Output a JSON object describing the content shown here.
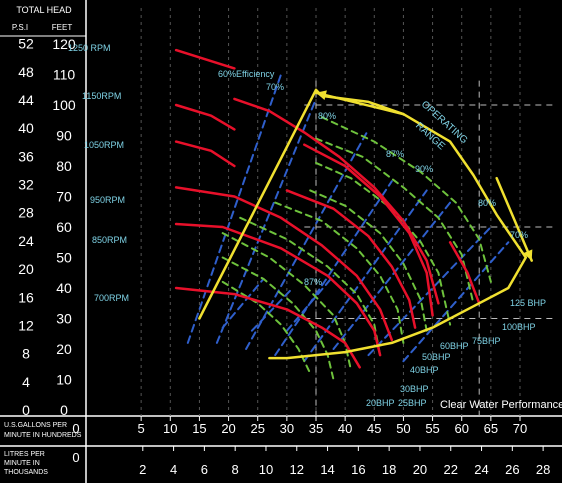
{
  "chart_data": {
    "type": "line",
    "title": "Clear Water Performance",
    "header": {
      "total_head": "TOTAL HEAD",
      "psi": "P.S.I",
      "feet": "FEET"
    },
    "psi_ticks": [
      0,
      4,
      8,
      12,
      16,
      20,
      24,
      28,
      32,
      36,
      40,
      44,
      48,
      52
    ],
    "feet_ticks": [
      0,
      10,
      20,
      30,
      40,
      50,
      60,
      70,
      80,
      90,
      100,
      110,
      120
    ],
    "usgpm_label": "U.S.GALLONS PER MINUTE IN HUNDREDS",
    "usgpm_ticks": [
      0,
      5,
      10,
      15,
      20,
      25,
      30,
      35,
      40,
      45,
      50,
      55,
      60,
      65,
      70
    ],
    "lpm_label": "LITRES PER MINUTE IN THOUSANDS",
    "lpm_ticks": [
      0,
      2,
      4,
      6,
      8,
      10,
      12,
      14,
      16,
      18,
      20,
      22,
      24,
      26,
      28
    ],
    "xlim": [
      0,
      70
    ],
    "ylim_feet": [
      0,
      120
    ],
    "grid_feet": [
      30,
      60,
      100
    ],
    "grid_x": [
      35,
      63
    ],
    "rpm_curves": [
      {
        "name": "1250 RPM",
        "color": "#e8102a",
        "points": [
          [
            11,
            118
          ],
          [
            21,
            112
          ]
        ]
      },
      {
        "name": "1150RPM",
        "color": "#e8102a",
        "points": [
          [
            11,
            100
          ],
          [
            17,
            96.5
          ],
          [
            21,
            92
          ]
        ]
      },
      {
        "name": "1050RPM",
        "color": "#e8102a",
        "points": [
          [
            11,
            88
          ],
          [
            17,
            85
          ],
          [
            21,
            80
          ]
        ]
      },
      {
        "name": "950RPM",
        "color": "#e8102a",
        "points": [
          [
            11,
            73
          ],
          [
            21,
            70
          ],
          [
            29,
            63
          ],
          [
            36,
            54
          ],
          [
            42,
            44
          ],
          [
            46,
            33
          ],
          [
            48,
            23
          ]
        ]
      },
      {
        "name": "850RPM",
        "color": "#e8102a",
        "points": [
          [
            11,
            61
          ],
          [
            19,
            60
          ],
          [
            29,
            53
          ],
          [
            37,
            44
          ],
          [
            42,
            35
          ],
          [
            45,
            26
          ],
          [
            46,
            18
          ]
        ]
      },
      {
        "name": "700RPM",
        "color": "#e8102a",
        "points": [
          [
            11,
            40
          ],
          [
            21,
            38
          ],
          [
            30,
            33
          ],
          [
            36,
            27
          ],
          [
            40,
            22
          ],
          [
            42.5,
            14
          ]
        ]
      }
    ],
    "extra_red_curves": [
      [
        [
          21,
          102
        ],
        [
          27,
          98
        ],
        [
          33,
          91
        ],
        [
          39,
          83
        ],
        [
          45,
          73
        ],
        [
          50,
          62
        ],
        [
          54,
          49
        ],
        [
          56,
          35
        ]
      ],
      [
        [
          33,
          87
        ],
        [
          40,
          80
        ],
        [
          46,
          70
        ],
        [
          51,
          58
        ],
        [
          54,
          45
        ],
        [
          55,
          31
        ]
      ],
      [
        [
          30,
          72
        ],
        [
          38,
          66
        ],
        [
          44,
          57
        ],
        [
          48,
          47
        ],
        [
          51,
          36
        ],
        [
          52,
          27
        ]
      ],
      [
        [
          58,
          55
        ],
        [
          61,
          45
        ],
        [
          63,
          35
        ]
      ]
    ],
    "efficiency_lines": [
      {
        "label": "60%Efficiency",
        "color": "#2f5fcc",
        "points": [
          [
            13,
            22
          ],
          [
            29,
            110
          ]
        ]
      },
      {
        "label": "70%",
        "color": "#2f5fcc",
        "points": [
          [
            18,
            22
          ],
          [
            35,
            102
          ]
        ]
      },
      {
        "label": "80%",
        "color": "#2f5fcc",
        "points": [
          [
            23,
            20
          ],
          [
            44,
            92
          ]
        ]
      },
      {
        "label": "87%",
        "color": "#2f5fcc",
        "points": [
          [
            28,
            18
          ],
          [
            48,
            75
          ]
        ]
      },
      {
        "label": "",
        "color": "#2f5fcc",
        "points": [
          [
            33,
            16
          ],
          [
            54,
            72
          ]
        ]
      },
      {
        "label": "90%",
        "color": "#2f5fcc",
        "points": [
          [
            30,
            26
          ],
          [
            38,
            44
          ]
        ]
      },
      {
        "label": "87%",
        "color": "#2f5fcc",
        "points": [
          [
            38,
            20
          ],
          [
            58,
            68
          ]
        ]
      },
      {
        "label": "80%",
        "color": "#2f5fcc",
        "points": [
          [
            44,
            18
          ],
          [
            65,
            60
          ]
        ]
      },
      {
        "label": "70%",
        "color": "#2f5fcc",
        "points": [
          [
            50,
            16
          ],
          [
            68,
            55
          ]
        ]
      },
      {
        "label": "",
        "color": "#2f5fcc",
        "points": [
          [
            24,
            26
          ],
          [
            31,
            40
          ]
        ]
      },
      {
        "label": "",
        "color": "#2f5fcc",
        "points": [
          [
            19,
            27
          ],
          [
            26,
            43
          ]
        ]
      }
    ],
    "bhp_curves": [
      {
        "label": "125 BHP",
        "color": "#6ec23c",
        "points": [
          [
            36,
            96
          ],
          [
            45,
            88
          ],
          [
            53,
            78
          ],
          [
            59,
            68
          ],
          [
            63,
            56
          ],
          [
            65,
            42
          ]
        ]
      },
      {
        "label": "100BHP",
        "color": "#6ec23c",
        "points": [
          [
            35,
            89
          ],
          [
            43,
            83
          ],
          [
            50,
            73
          ],
          [
            56,
            63
          ],
          [
            60,
            51
          ],
          [
            62,
            35
          ]
        ]
      },
      {
        "label": "75BHP",
        "color": "#6ec23c",
        "points": [
          [
            35,
            81
          ],
          [
            41,
            76
          ],
          [
            48,
            66
          ],
          [
            53,
            55
          ],
          [
            56,
            45
          ],
          [
            58,
            28
          ]
        ]
      },
      {
        "label": "60BHP",
        "color": "#6ec23c",
        "points": [
          [
            34,
            72
          ],
          [
            40,
            67
          ],
          [
            46,
            58
          ],
          [
            50,
            48
          ],
          [
            53,
            36
          ],
          [
            54,
            26
          ]
        ]
      },
      {
        "label": "50BHP",
        "color": "#6ec23c",
        "points": [
          [
            28,
            68
          ],
          [
            36,
            62
          ],
          [
            42,
            53
          ],
          [
            46,
            44
          ],
          [
            49,
            33
          ],
          [
            50,
            22
          ]
        ]
      },
      {
        "label": "40BHP",
        "color": "#6ec23c",
        "points": [
          [
            22,
            63
          ],
          [
            30,
            56
          ],
          [
            37,
            47
          ],
          [
            42,
            38
          ],
          [
            45,
            28
          ],
          [
            46,
            18
          ]
        ]
      },
      {
        "label": "30BHP",
        "color": "#6ec23c",
        "points": [
          [
            19,
            58
          ],
          [
            27,
            50
          ],
          [
            33,
            41
          ],
          [
            38,
            31
          ],
          [
            40,
            22
          ],
          [
            41,
            13
          ]
        ]
      },
      {
        "label": "25BHP",
        "color": "#6ec23c",
        "points": [
          [
            19,
            50
          ],
          [
            26,
            43
          ],
          [
            31,
            35
          ],
          [
            35,
            26
          ],
          [
            37,
            18
          ],
          [
            38,
            10
          ]
        ]
      },
      {
        "label": "20BHP",
        "color": "#6ec23c",
        "points": [
          [
            19,
            42
          ],
          [
            25,
            35
          ],
          [
            29,
            28
          ],
          [
            32,
            20
          ],
          [
            34,
            12
          ]
        ]
      }
    ],
    "operating_range": {
      "label": "OPERATING RANGE",
      "color": "#f0e030",
      "boundary": [
        [
          15,
          30
        ],
        [
          35,
          105
        ],
        [
          36,
          103
        ],
        [
          44,
          101
        ],
        [
          50,
          97
        ],
        [
          58,
          88
        ],
        [
          62,
          77
        ],
        [
          66,
          64
        ],
        [
          71,
          50
        ],
        [
          68,
          40
        ],
        [
          62,
          34
        ],
        [
          55,
          27
        ],
        [
          48,
          22
        ],
        [
          40,
          19
        ],
        [
          30,
          17
        ],
        [
          27,
          17
        ]
      ],
      "arrows": [
        {
          "from": [
            50,
            97
          ],
          "to": [
            35,
            104
          ]
        },
        {
          "from": [
            66,
            76
          ],
          "to": [
            72,
            49
          ]
        }
      ]
    }
  }
}
